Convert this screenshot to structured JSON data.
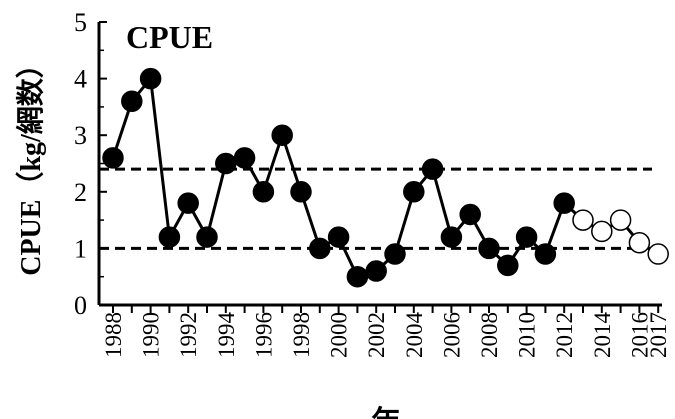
{
  "chart_data": {
    "type": "line",
    "title": "CPUE",
    "xlabel": "年",
    "ylabel": "CPUE（kg/網数）",
    "ylim": [
      0,
      5
    ],
    "xlim": [
      1988,
      2017
    ],
    "y_ticks": [
      "0",
      "1",
      "2",
      "3",
      "4",
      "5"
    ],
    "x_ticks": [
      "1988",
      "1990",
      "1992",
      "1994",
      "1996",
      "1998",
      "2000",
      "2002",
      "2004",
      "2006",
      "2008",
      "2010",
      "2012",
      "2014",
      "2016",
      "2017"
    ],
    "grid": false,
    "reference_lines": [
      2.4,
      1.0
    ],
    "series": [
      {
        "marker": "filled-circle",
        "x": [
          1988,
          1989,
          1990,
          1991,
          1992,
          1993,
          1994,
          1995,
          1996,
          1997,
          1998,
          1999,
          2000,
          2001,
          2002,
          2003,
          2004,
          2005,
          2006,
          2007,
          2008,
          2009,
          2010,
          2011,
          2012
        ],
        "values": [
          2.6,
          3.6,
          4.0,
          1.2,
          1.8,
          1.2,
          2.5,
          2.6,
          2.0,
          3.0,
          2.0,
          1.0,
          1.2,
          0.5,
          0.6,
          0.9,
          2.0,
          2.4,
          1.2,
          1.6,
          1.0,
          0.7,
          1.2,
          0.9,
          1.8
        ]
      },
      {
        "marker": "open-circle",
        "x": [
          2013,
          2014,
          2015,
          2016,
          2017
        ],
        "values": [
          1.5,
          1.3,
          1.5,
          1.1,
          0.9
        ]
      }
    ]
  }
}
